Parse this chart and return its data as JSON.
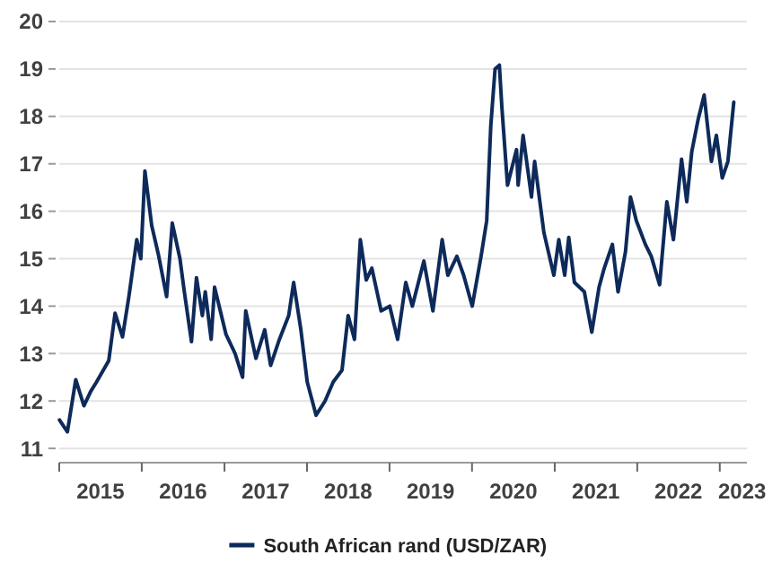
{
  "chart_data": {
    "type": "line",
    "ylim": [
      10.7,
      20
    ],
    "yticks": [
      11,
      12,
      13,
      14,
      15,
      16,
      17,
      18,
      19,
      20
    ],
    "xlim": [
      "2015-01-01",
      "2023-05-01"
    ],
    "xticks": [
      {
        "value": "2015-01-01",
        "label": null
      },
      {
        "value": "2015-07-02",
        "label": "2015"
      },
      {
        "value": "2016-01-01",
        "label": null
      },
      {
        "value": "2016-07-02",
        "label": "2016"
      },
      {
        "value": "2017-01-01",
        "label": null
      },
      {
        "value": "2017-07-02",
        "label": "2017"
      },
      {
        "value": "2018-01-01",
        "label": null
      },
      {
        "value": "2018-07-02",
        "label": "2018"
      },
      {
        "value": "2019-01-01",
        "label": null
      },
      {
        "value": "2019-07-02",
        "label": "2019"
      },
      {
        "value": "2020-01-01",
        "label": null
      },
      {
        "value": "2020-07-02",
        "label": "2020"
      },
      {
        "value": "2021-01-01",
        "label": null
      },
      {
        "value": "2021-07-02",
        "label": "2021"
      },
      {
        "value": "2022-01-01",
        "label": null
      },
      {
        "value": "2022-07-02",
        "label": "2022"
      },
      {
        "value": "2023-01-01",
        "label": null
      },
      {
        "value": "2023-04-10",
        "label": "2023"
      }
    ],
    "grid": "y",
    "legend": "bottom",
    "line_style": "solid",
    "marker": "none",
    "series": [
      {
        "name": "South African rand (USD/ZAR)",
        "color": "#0e2a5a",
        "x": [
          "2015-01-02",
          "2015-02-06",
          "2015-03-15",
          "2015-04-20",
          "2015-05-20",
          "2015-06-15",
          "2015-08-08",
          "2015-09-05",
          "2015-10-08",
          "2015-11-05",
          "2015-12-10",
          "2015-12-28",
          "2016-01-15",
          "2016-02-14",
          "2016-03-14",
          "2016-04-20",
          "2016-05-15",
          "2016-06-18",
          "2016-07-06",
          "2016-08-08",
          "2016-08-30",
          "2016-09-25",
          "2016-10-08",
          "2016-11-03",
          "2016-11-18",
          "2017-01-08",
          "2017-02-17",
          "2017-03-22",
          "2017-04-05",
          "2017-05-20",
          "2017-06-28",
          "2017-07-24",
          "2017-09-01",
          "2017-10-12",
          "2017-11-03",
          "2017-12-05",
          "2018-01-02",
          "2018-02-10",
          "2018-03-22",
          "2018-04-27",
          "2018-06-05",
          "2018-07-02",
          "2018-07-30",
          "2018-08-25",
          "2018-09-20",
          "2018-10-15",
          "2018-11-25",
          "2019-01-02",
          "2019-02-06",
          "2019-03-14",
          "2019-04-12",
          "2019-06-02",
          "2019-07-12",
          "2019-08-22",
          "2019-09-16",
          "2019-10-26",
          "2019-11-25",
          "2020-01-02",
          "2020-02-10",
          "2020-03-06",
          "2020-03-24",
          "2020-04-12",
          "2020-05-01",
          "2020-05-12",
          "2020-06-06",
          "2020-07-16",
          "2020-07-23",
          "2020-08-14",
          "2020-09-20",
          "2020-10-04",
          "2020-11-14",
          "2020-12-28",
          "2021-01-19",
          "2021-02-14",
          "2021-03-04",
          "2021-03-29",
          "2021-05-12",
          "2021-06-14",
          "2021-07-16",
          "2021-08-08",
          "2021-09-13",
          "2021-10-08",
          "2021-11-10",
          "2021-12-02",
          "2021-12-28",
          "2022-02-06",
          "2022-03-04",
          "2022-04-10",
          "2022-05-12",
          "2022-06-10",
          "2022-07-16",
          "2022-08-08",
          "2022-08-30",
          "2022-09-28",
          "2022-10-24",
          "2022-11-25",
          "2022-12-17",
          "2023-01-12",
          "2023-02-06",
          "2023-03-04"
        ],
        "values": [
          11.6,
          11.35,
          12.45,
          11.9,
          12.2,
          12.4,
          12.85,
          13.85,
          13.35,
          14.2,
          15.4,
          15.0,
          16.85,
          15.7,
          15.1,
          14.2,
          15.75,
          15.0,
          14.35,
          13.25,
          14.6,
          13.8,
          14.3,
          13.3,
          14.4,
          13.4,
          13.0,
          12.5,
          13.9,
          12.9,
          13.5,
          12.75,
          13.3,
          13.8,
          14.5,
          13.5,
          12.4,
          11.7,
          12.0,
          12.4,
          12.65,
          13.8,
          13.3,
          15.4,
          14.55,
          14.8,
          13.9,
          14.0,
          13.3,
          14.5,
          14.0,
          14.95,
          13.9,
          15.4,
          14.65,
          15.05,
          14.65,
          14.0,
          15.05,
          15.8,
          17.8,
          19.0,
          19.08,
          18.2,
          16.55,
          17.3,
          16.55,
          17.6,
          16.3,
          17.05,
          15.55,
          14.65,
          15.4,
          14.65,
          15.45,
          14.5,
          14.3,
          13.45,
          14.4,
          14.8,
          15.3,
          14.3,
          15.15,
          16.3,
          15.8,
          15.3,
          15.05,
          14.45,
          16.2,
          15.4,
          17.1,
          16.2,
          17.25,
          17.95,
          18.45,
          17.05,
          17.6,
          16.7,
          17.05,
          18.3
        ]
      }
    ]
  }
}
